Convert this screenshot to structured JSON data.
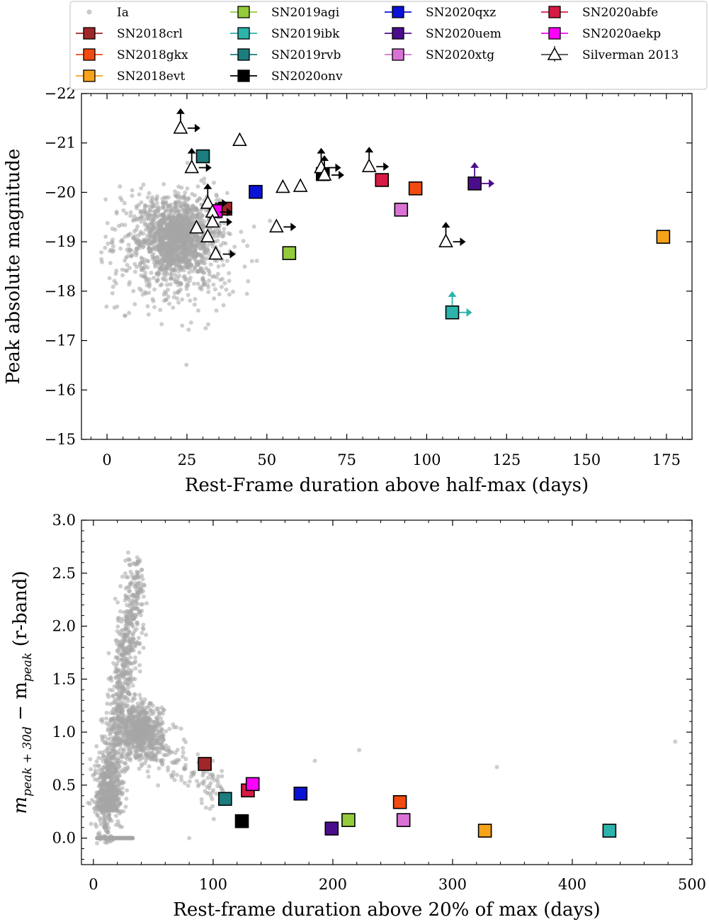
{
  "legend": {
    "entries": [
      {
        "label": "Ia",
        "marker": "dot",
        "color": "#a6a6a6"
      },
      {
        "label": "SN2018crl",
        "marker": "square",
        "color": "#a1262a"
      },
      {
        "label": "SN2018gkx",
        "marker": "square",
        "color": "#f24a0f"
      },
      {
        "label": "SN2018evt",
        "marker": "square",
        "color": "#f7a31a"
      },
      {
        "label": "SN2019agi",
        "marker": "square",
        "color": "#93cb3b"
      },
      {
        "label": "SN2019ibk",
        "marker": "square",
        "color": "#2cb3ac"
      },
      {
        "label": "SN2019rvb",
        "marker": "square",
        "color": "#1b7d7d"
      },
      {
        "label": "SN2020onv",
        "marker": "square",
        "color": "#000000"
      },
      {
        "label": "SN2020qxz",
        "marker": "square",
        "color": "#0a12d6"
      },
      {
        "label": "SN2020uem",
        "marker": "square",
        "color": "#4b0d8c"
      },
      {
        "label": "SN2020xtg",
        "marker": "square",
        "color": "#da72d6"
      },
      {
        "label": "Silverman 2013",
        "marker": "triangle",
        "color": "#000000"
      },
      {
        "label": "SN2020abfe",
        "marker": "square",
        "color": "#d61b44"
      },
      {
        "label": "SN2020aekp",
        "marker": "square",
        "color": "#ff00ff"
      }
    ]
  },
  "chart_data": [
    {
      "type": "scatter",
      "xlabel": "Rest-Frame duration above half-max (days)",
      "ylabel": "Peak absolute magnitude",
      "xlim": [
        -8,
        183
      ],
      "ylim": [
        -15,
        -22
      ],
      "y_inverted": true,
      "xticks": [
        0,
        25,
        50,
        75,
        100,
        125,
        150,
        175
      ],
      "yticks": [
        -22,
        -21,
        -20,
        -19,
        -18,
        -17,
        -16,
        -15
      ],
      "ytick_labels": [
        "−22",
        "−21",
        "−20",
        "−19",
        "−18",
        "−17",
        "−16",
        "−15"
      ],
      "ia_population": {
        "name": "Ia",
        "color": "#a6a6a6",
        "approx_center": [
          22,
          -19.1
        ],
        "approx_points": 1800
      },
      "series": [
        {
          "name": "SN2018crl",
          "color": "#a1262a",
          "points": [
            [
              37,
              -19.67
            ]
          ]
        },
        {
          "name": "SN2018gkx",
          "color": "#f24a0f",
          "points": [
            [
              96.5,
              -20.08
            ]
          ]
        },
        {
          "name": "SN2018evt",
          "color": "#f7a31a",
          "points": [
            [
              174,
              -19.1
            ]
          ]
        },
        {
          "name": "SN2019agi",
          "color": "#93cb3b",
          "points": [
            [
              57,
              -18.77
            ]
          ]
        },
        {
          "name": "SN2019ibk",
          "color": "#2cb3ac",
          "points": [
            [
              108,
              -17.57
            ]
          ],
          "lower_limits": {
            "x": true,
            "y": true
          }
        },
        {
          "name": "SN2019rvb",
          "color": "#1b7d7d",
          "points": [
            [
              30,
              -20.73
            ]
          ]
        },
        {
          "name": "SN2020onv",
          "color": "#000000",
          "points": [
            [
              67.5,
              -20.37
            ]
          ]
        },
        {
          "name": "SN2020qxz",
          "color": "#0a12d6",
          "points": [
            [
              46.5,
              -20.01
            ]
          ]
        },
        {
          "name": "SN2020uem",
          "color": "#4b0d8c",
          "points": [
            [
              115,
              -20.18
            ]
          ],
          "lower_limits": {
            "x": true,
            "y": true
          }
        },
        {
          "name": "SN2020xtg",
          "color": "#da72d6",
          "points": [
            [
              92,
              -19.65
            ]
          ]
        },
        {
          "name": "SN2020abfe",
          "color": "#d61b44",
          "points": [
            [
              86,
              -20.25
            ]
          ]
        },
        {
          "name": "SN2020aekp",
          "color": "#ff00ff",
          "points": [
            [
              34,
              -19.62
            ]
          ]
        },
        {
          "name": "Silverman 2013",
          "marker": "triangle",
          "color": "#000000",
          "points": [
            {
              "x": 23,
              "y": -21.3,
              "limits": [
                "x",
                "y"
              ]
            },
            {
              "x": 41.5,
              "y": -21.05
            },
            {
              "x": 26.5,
              "y": -20.5,
              "limits": [
                "x",
                "y"
              ]
            },
            {
              "x": 67,
              "y": -20.5,
              "limits": [
                "x",
                "y"
              ]
            },
            {
              "x": 68,
              "y": -20.35,
              "limits": [
                "x",
                "y"
              ]
            },
            {
              "x": 82,
              "y": -20.52,
              "limits": [
                "x",
                "y"
              ]
            },
            {
              "x": 55,
              "y": -20.1
            },
            {
              "x": 60.5,
              "y": -20.12
            },
            {
              "x": 31.5,
              "y": -19.78,
              "limits": [
                "x",
                "y"
              ]
            },
            {
              "x": 33,
              "y": -19.6,
              "limits": [
                "x"
              ]
            },
            {
              "x": 28,
              "y": -19.28
            },
            {
              "x": 33,
              "y": -19.4,
              "limits": [
                "x"
              ]
            },
            {
              "x": 31.5,
              "y": -19.1
            },
            {
              "x": 53,
              "y": -19.3,
              "limits": [
                "x"
              ]
            },
            {
              "x": 106,
              "y": -19.0,
              "limits": [
                "x",
                "y"
              ]
            },
            {
              "x": 34,
              "y": -18.75,
              "limits": [
                "x"
              ]
            }
          ]
        }
      ]
    },
    {
      "type": "scatter",
      "xlabel": "Rest-frame duration above 20% of max (days)",
      "ylabel_main": "m",
      "ylabel_sub1": "peak + 30d",
      "ylabel_mid": " − m",
      "ylabel_sub2": "peak",
      "ylabel_tail": " (r-band)",
      "xlim": [
        -10,
        500
      ],
      "ylim": [
        -0.25,
        3.0
      ],
      "xticks": [
        0,
        100,
        200,
        300,
        400,
        500
      ],
      "yticks": [
        0.0,
        0.5,
        1.0,
        1.5,
        2.0,
        2.5,
        3.0
      ],
      "ytick_labels": [
        "0.0",
        "0.5",
        "1.0",
        "1.5",
        "2.0",
        "2.5",
        "3.0"
      ],
      "ia_population": {
        "name": "Ia",
        "color": "#a6a6a6",
        "approx_points": 2600
      },
      "series": [
        {
          "name": "SN2018crl",
          "color": "#a1262a",
          "points": [
            [
              93,
              0.7
            ]
          ]
        },
        {
          "name": "SN2018gkx",
          "color": "#f24a0f",
          "points": [
            [
              256,
              0.34
            ]
          ]
        },
        {
          "name": "SN2018evt",
          "color": "#f7a31a",
          "points": [
            [
              327,
              0.07
            ]
          ]
        },
        {
          "name": "SN2019agi",
          "color": "#93cb3b",
          "points": [
            [
              213,
              0.17
            ]
          ]
        },
        {
          "name": "SN2019ibk",
          "color": "#2cb3ac",
          "points": [
            [
              431,
              0.07
            ]
          ]
        },
        {
          "name": "SN2019rvb",
          "color": "#1b7d7d",
          "points": [
            [
              110,
              0.37
            ]
          ]
        },
        {
          "name": "SN2020onv",
          "color": "#000000",
          "points": [
            [
              124,
              0.16
            ]
          ]
        },
        {
          "name": "SN2020qxz",
          "color": "#0a12d6",
          "points": [
            [
              173,
              0.42
            ]
          ]
        },
        {
          "name": "SN2020uem",
          "color": "#4b0d8c",
          "points": [
            [
              199,
              0.09
            ]
          ]
        },
        {
          "name": "SN2020xtg",
          "color": "#da72d6",
          "points": [
            [
              259,
              0.17
            ]
          ]
        },
        {
          "name": "SN2020abfe",
          "color": "#d61b44",
          "points": [
            [
              129,
              0.45
            ]
          ]
        },
        {
          "name": "SN2020aekp",
          "color": "#ff00ff",
          "points": [
            [
              133,
              0.51
            ]
          ]
        }
      ]
    }
  ]
}
